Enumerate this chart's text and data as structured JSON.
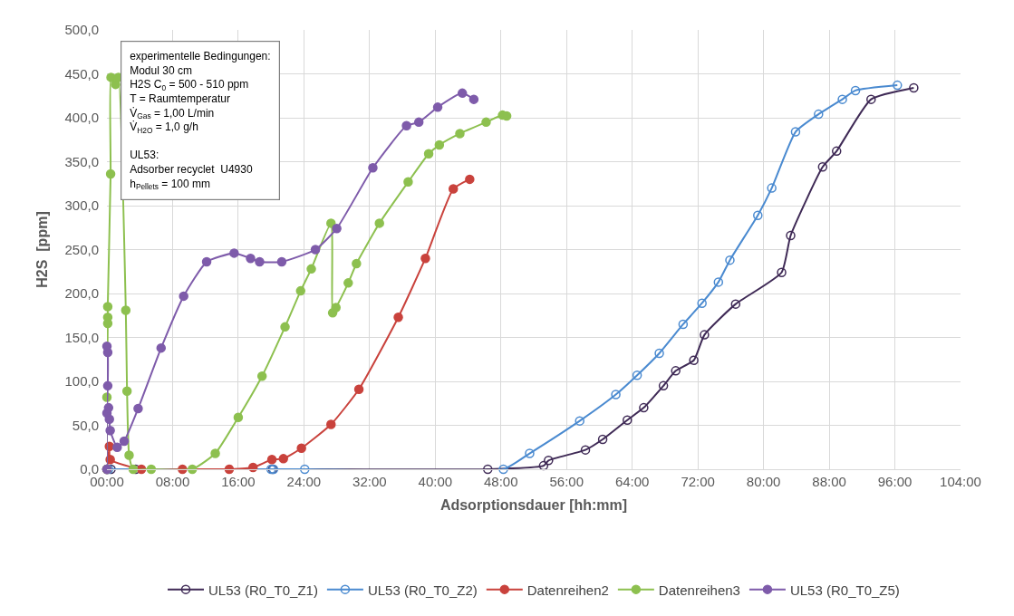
{
  "chart_data": {
    "type": "line",
    "xlabel": "Adsorptionsdauer [hh:mm]",
    "ylabel": "H2S  [ppm]",
    "xlim": [
      0,
      104
    ],
    "xticks": [
      {
        "value": 0,
        "label": "00:00"
      },
      {
        "value": 8,
        "label": "08:00"
      },
      {
        "value": 16,
        "label": "16:00"
      },
      {
        "value": 24,
        "label": "24:00"
      },
      {
        "value": 32,
        "label": "32:00"
      },
      {
        "value": 40,
        "label": "40:00"
      },
      {
        "value": 48,
        "label": "48:00"
      },
      {
        "value": 56,
        "label": "56:00"
      },
      {
        "value": 64,
        "label": "64:00"
      },
      {
        "value": 72,
        "label": "72:00"
      },
      {
        "value": 80,
        "label": "80:00"
      },
      {
        "value": 88,
        "label": "88:00"
      },
      {
        "value": 96,
        "label": "96:00"
      },
      {
        "value": 104,
        "label": "104:00"
      }
    ],
    "ylim": [
      0,
      500
    ],
    "yticks": [
      {
        "value": 0,
        "label": "0,0"
      },
      {
        "value": 50,
        "label": "50,0"
      },
      {
        "value": 100,
        "label": "100,0"
      },
      {
        "value": 150,
        "label": "150,0"
      },
      {
        "value": 200,
        "label": "200,0"
      },
      {
        "value": 250,
        "label": "250,0"
      },
      {
        "value": 300,
        "label": "300,0"
      },
      {
        "value": 350,
        "label": "350,0"
      },
      {
        "value": 400,
        "label": "400,0"
      },
      {
        "value": 450,
        "label": "450,0"
      },
      {
        "value": 500,
        "label": "500,0"
      }
    ],
    "grid": true,
    "legend": "bottom",
    "line_style": "solid",
    "annotations": [
      "experimentelle Bedingungen:\nModul 30 cm\nH2S C$_{0}$ = 500 - 510 ppm\nT = Raumtemperatur\nV̇$_{Gas}$ = 1,00 L/min\nV̇$_{H2O}$ = 1,0 g/h",
      "UL53:\nAdsorber recyclet  U4930\nh$_{Pellets}$ = 100 mm"
    ],
    "series": [
      {
        "name": "UL53 (R0_T0_Z1)",
        "color": "#3f2a56",
        "marker": "circle-open",
        "x": [
          0,
          0.5,
          3.5,
          20.2,
          46.4,
          53.2,
          53.8,
          58.3,
          60.4,
          63.4,
          65.4,
          67.8,
          69.3,
          71.5,
          72.8,
          76.6,
          82.2,
          83.3,
          87.2,
          88.9,
          93.1,
          98.3
        ],
        "values": [
          0,
          0,
          0,
          0,
          0,
          4,
          10,
          22,
          34,
          56,
          70,
          95,
          112,
          124,
          153,
          188,
          224,
          266,
          344,
          362,
          421,
          434
        ]
      },
      {
        "name": "UL53 (R0_T0_Z2)",
        "color": "#4a8ad0",
        "marker": "circle-open",
        "x": [
          0,
          0.2,
          20.0,
          20.3,
          24.1,
          48.3,
          51.5,
          57.6,
          62.0,
          64.6,
          67.3,
          70.2,
          72.5,
          74.5,
          75.9,
          79.3,
          81.0,
          83.9,
          86.7,
          89.6,
          91.2,
          96.3
        ],
        "values": [
          0,
          0,
          0,
          0,
          0,
          0,
          18,
          55,
          85,
          107,
          132,
          165,
          189,
          213,
          238,
          289,
          320,
          384,
          404,
          421,
          431,
          437
        ]
      },
      {
        "name": "Datenreihen2",
        "color": "#c9423c",
        "marker": "circle",
        "x": [
          0,
          0.3,
          0.4,
          4.2,
          9.2,
          14.9,
          17.8,
          20.1,
          21.5,
          23.7,
          27.3,
          30.7,
          35.5,
          38.8,
          42.2,
          44.2
        ],
        "values": [
          0,
          26,
          11,
          0,
          0,
          0,
          2,
          11,
          12,
          24,
          51,
          91,
          173,
          240,
          319,
          330
        ]
      },
      {
        "name": "Datenreihen3",
        "color": "#8dc04f",
        "marker": "circle",
        "x": [
          0,
          0,
          0.1,
          0.1,
          0.1,
          0.45,
          0.5,
          1.05,
          1.4,
          2.3,
          2.45,
          2.7,
          3.2,
          5.4,
          10.4,
          13.2,
          16.0,
          18.9,
          21.7,
          23.6,
          24.9,
          27.3,
          27.5,
          27.9,
          29.4,
          30.4,
          33.2,
          36.7,
          39.2,
          40.5,
          43.0,
          46.2,
          48.2,
          48.7
        ],
        "values": [
          0,
          82,
          166,
          173,
          185,
          336,
          446,
          438,
          446,
          181,
          89,
          16,
          0,
          0,
          0,
          18,
          59,
          106,
          162,
          203,
          228,
          280,
          178,
          184,
          212,
          234,
          280,
          327,
          359,
          369,
          382,
          395,
          403,
          402
        ]
      },
      {
        "name": "UL53 (R0_T0_Z5)",
        "color": "#7e5baa",
        "marker": "circle",
        "x": [
          0,
          0,
          0.1,
          0.1,
          0,
          0.2,
          0.3,
          0.4,
          1.25,
          2.1,
          3.8,
          6.6,
          9.35,
          12.15,
          15.5,
          17.5,
          18.6,
          21.3,
          25.4,
          28.0,
          32.4,
          36.5,
          38.0,
          40.3,
          43.3,
          44.7
        ],
        "values": [
          0,
          140,
          133,
          95,
          64,
          70,
          57,
          44,
          25,
          32,
          69,
          138,
          197,
          236,
          246,
          240,
          236,
          236,
          250,
          274,
          343,
          391,
          395,
          412,
          428,
          421
        ]
      }
    ]
  }
}
